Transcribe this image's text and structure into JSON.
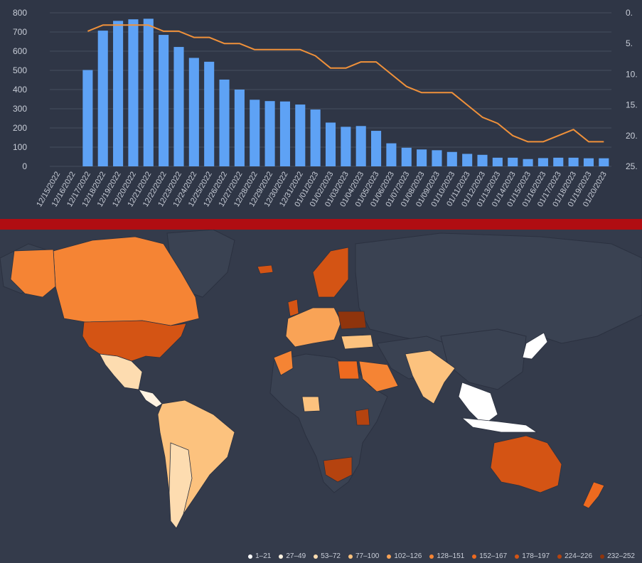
{
  "chart_data": {
    "type": "bar",
    "categories": [
      "12/15/2022",
      "12/16/2022",
      "12/17/2022",
      "12/18/2022",
      "12/19/2022",
      "12/20/2022",
      "12/21/2022",
      "12/22/2022",
      "12/23/2022",
      "12/24/2022",
      "12/25/2022",
      "12/26/2022",
      "12/27/2022",
      "12/28/2022",
      "12/29/2022",
      "12/30/2022",
      "12/31/2022",
      "01/01/2023",
      "01/02/2023",
      "01/03/2023",
      "01/04/2023",
      "01/05/2023",
      "01/06/2023",
      "01/07/2023",
      "01/08/2023",
      "01/09/2023",
      "01/10/2023",
      "01/11/2023",
      "01/12/2023",
      "01/13/2023",
      "01/14/2023",
      "01/15/2023",
      "01/16/2023",
      "01/17/2023",
      "01/18/2023",
      "01/19/2023",
      "01/20/2023"
    ],
    "series": [
      {
        "type": "bar",
        "axis": "left",
        "color": "#5ea2f5",
        "values": [
          null,
          null,
          502,
          707,
          758,
          766,
          769,
          685,
          622,
          565,
          545,
          452,
          400,
          347,
          340,
          338,
          322,
          296,
          228,
          206,
          210,
          185,
          120,
          97,
          88,
          84,
          75,
          65,
          60,
          45,
          45,
          38,
          43,
          45,
          45,
          42,
          42
        ]
      },
      {
        "type": "line",
        "axis": "right",
        "color": "#f0913a",
        "values": [
          null,
          null,
          3,
          2,
          2,
          2,
          2,
          3,
          3,
          4,
          4,
          5,
          5,
          6,
          6,
          6,
          6,
          7,
          9,
          9,
          8,
          8,
          10,
          12,
          13,
          13,
          13,
          15,
          17,
          18,
          20,
          21,
          21,
          20,
          19,
          21,
          21
        ]
      }
    ],
    "ylim": [
      0,
      800
    ],
    "yticks": [
      0,
      100,
      200,
      300,
      400,
      500,
      600,
      700,
      800
    ],
    "y2lim": [
      0,
      25
    ],
    "y2ticks": [
      "0.",
      "5.",
      "10.",
      "15.",
      "20.",
      "25."
    ],
    "y2_reversed": true,
    "grid": true
  },
  "map": {
    "legend": [
      {
        "label": "1–21",
        "color": "#ffffff"
      },
      {
        "label": "27–49",
        "color": "#fff3e2"
      },
      {
        "label": "53–72",
        "color": "#fddcb0"
      },
      {
        "label": "77–100",
        "color": "#fcc27e"
      },
      {
        "label": "102–126",
        "color": "#f9a356"
      },
      {
        "label": "128–151",
        "color": "#f58434"
      },
      {
        "label": "152–167",
        "color": "#ee6a1f"
      },
      {
        "label": "178–197",
        "color": "#d45414"
      },
      {
        "label": "224–226",
        "color": "#b5430f"
      },
      {
        "label": "232–252",
        "color": "#8f340c"
      }
    ]
  }
}
